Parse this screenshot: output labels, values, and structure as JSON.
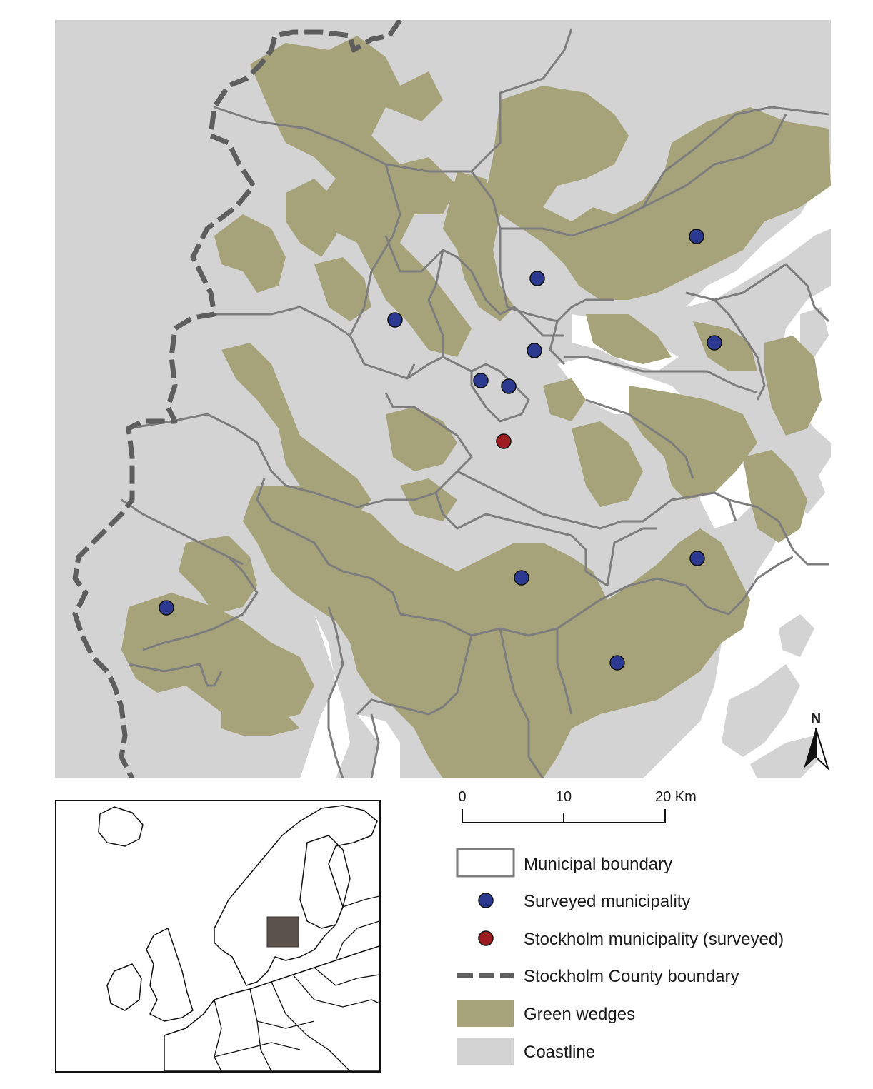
{
  "colors": {
    "land": "#d3d3d3",
    "water": "#ffffff",
    "green_wedge": "#a6a37a",
    "municipal_boundary": "#7d7d7d",
    "county_boundary": "#5e5e5e",
    "surveyed": "#2b3990",
    "stockholm": "#9e1c20",
    "inset_highlight": "#5b524c"
  },
  "north_arrow": {
    "label": "N",
    "icon": "north-arrow-icon"
  },
  "scale_bar": {
    "ticks": [
      "0",
      "10",
      "20 Km"
    ]
  },
  "legend": {
    "items": [
      {
        "key": "municipal",
        "label": "Municipal boundary"
      },
      {
        "key": "surveyed",
        "label": "Surveyed municipality"
      },
      {
        "key": "stockholm",
        "label": "Stockholm municipality (surveyed)"
      },
      {
        "key": "county",
        "label": "Stockholm County boundary"
      },
      {
        "key": "green",
        "label": "Green wedges"
      },
      {
        "key": "coast",
        "label": "Coastline"
      }
    ]
  },
  "markers": {
    "surveyed_count": 12,
    "stockholm_count": 1
  }
}
